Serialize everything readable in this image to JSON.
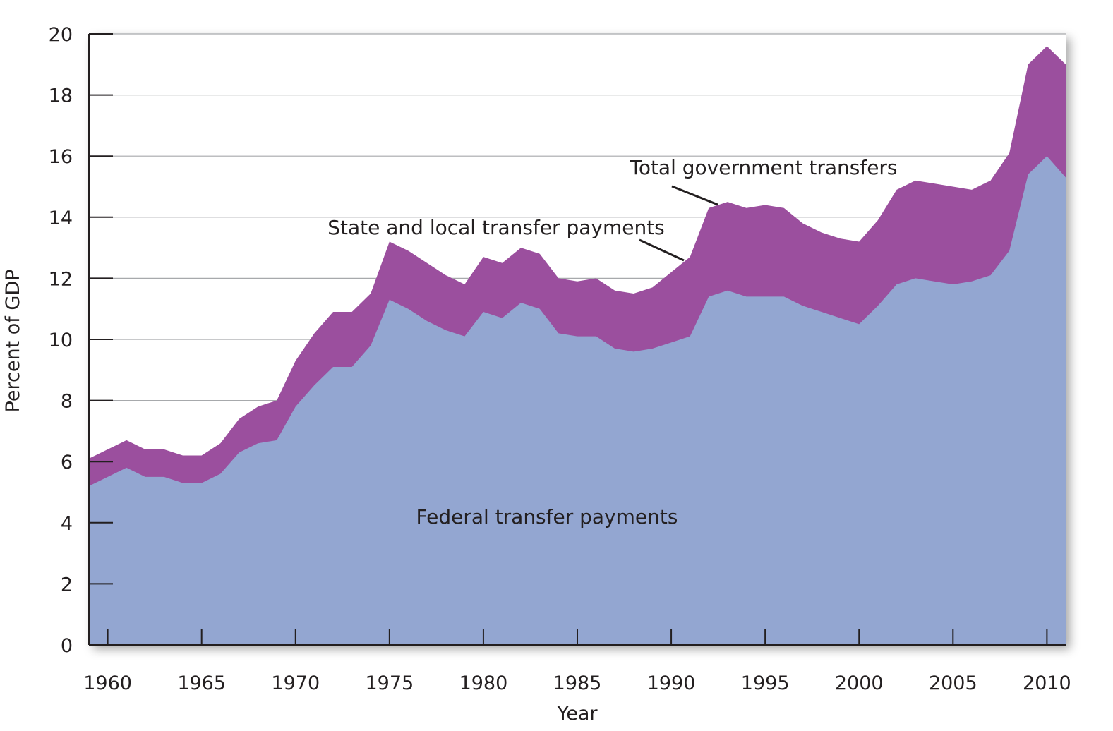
{
  "chart_data": {
    "type": "area",
    "title": "",
    "xlabel": "Year",
    "ylabel": "Percent of GDP",
    "xlim": [
      1959,
      2011
    ],
    "ylim": [
      0,
      20
    ],
    "x_ticks": [
      1960,
      1965,
      1970,
      1975,
      1980,
      1985,
      1990,
      1995,
      2000,
      2005,
      2010
    ],
    "x_tick_labels": [
      "1960",
      "1965",
      "1970",
      "1975",
      "1980",
      "1985",
      "1990",
      "1995",
      "2000",
      "2005",
      "2010"
    ],
    "y_ticks": [
      0,
      2,
      4,
      6,
      8,
      10,
      12,
      14,
      16,
      18,
      20
    ],
    "y_tick_labels": [
      "0",
      "2",
      "4",
      "6",
      "8",
      "10",
      "12",
      "14",
      "16",
      "18",
      "20"
    ],
    "grid": true,
    "x": [
      1959,
      1960,
      1961,
      1962,
      1963,
      1964,
      1965,
      1966,
      1967,
      1968,
      1969,
      1970,
      1971,
      1972,
      1973,
      1974,
      1975,
      1976,
      1977,
      1978,
      1979,
      1980,
      1981,
      1982,
      1983,
      1984,
      1985,
      1986,
      1987,
      1988,
      1989,
      1990,
      1991,
      1992,
      1993,
      1994,
      1995,
      1996,
      1997,
      1998,
      1999,
      2000,
      2001,
      2002,
      2003,
      2004,
      2005,
      2006,
      2007,
      2008,
      2009,
      2010,
      2011
    ],
    "series": [
      {
        "name": "Federal transfer payments",
        "color": "#93a6d1",
        "values": [
          5.2,
          5.5,
          5.8,
          5.5,
          5.5,
          5.3,
          5.3,
          5.6,
          6.3,
          6.6,
          6.7,
          7.8,
          8.5,
          9.1,
          9.1,
          9.8,
          11.3,
          11.0,
          10.6,
          10.3,
          10.1,
          10.9,
          10.7,
          11.2,
          11.0,
          10.2,
          10.1,
          10.1,
          9.7,
          9.6,
          9.7,
          9.9,
          10.1,
          11.4,
          11.6,
          11.4,
          11.4,
          11.4,
          11.1,
          10.9,
          10.7,
          10.5,
          11.1,
          11.8,
          12.0,
          11.9,
          11.8,
          11.9,
          12.1,
          12.9,
          15.4,
          16.0,
          15.3
        ]
      },
      {
        "name": "State and local transfer payments",
        "color": "#9b4f9e",
        "values": [
          0.9,
          0.9,
          0.9,
          0.9,
          0.9,
          0.9,
          0.9,
          1.0,
          1.1,
          1.2,
          1.3,
          1.5,
          1.7,
          1.8,
          1.8,
          1.7,
          1.9,
          1.9,
          1.9,
          1.8,
          1.7,
          1.8,
          1.8,
          1.8,
          1.8,
          1.8,
          1.8,
          1.9,
          1.9,
          1.9,
          2.0,
          2.3,
          2.6,
          2.9,
          2.9,
          2.9,
          3.0,
          2.9,
          2.7,
          2.6,
          2.6,
          2.7,
          2.8,
          3.1,
          3.2,
          3.2,
          3.2,
          3.0,
          3.1,
          3.2,
          3.6,
          3.6,
          3.7
        ]
      }
    ],
    "annotations": [
      {
        "text": "Total government transfers",
        "points_to": "Total (federal + state and local), near 1992"
      },
      {
        "text": "State and local transfer payments",
        "points_to": "State and local band, near 1990"
      },
      {
        "text": "Federal transfer payments",
        "points_to": "Federal area"
      }
    ]
  }
}
